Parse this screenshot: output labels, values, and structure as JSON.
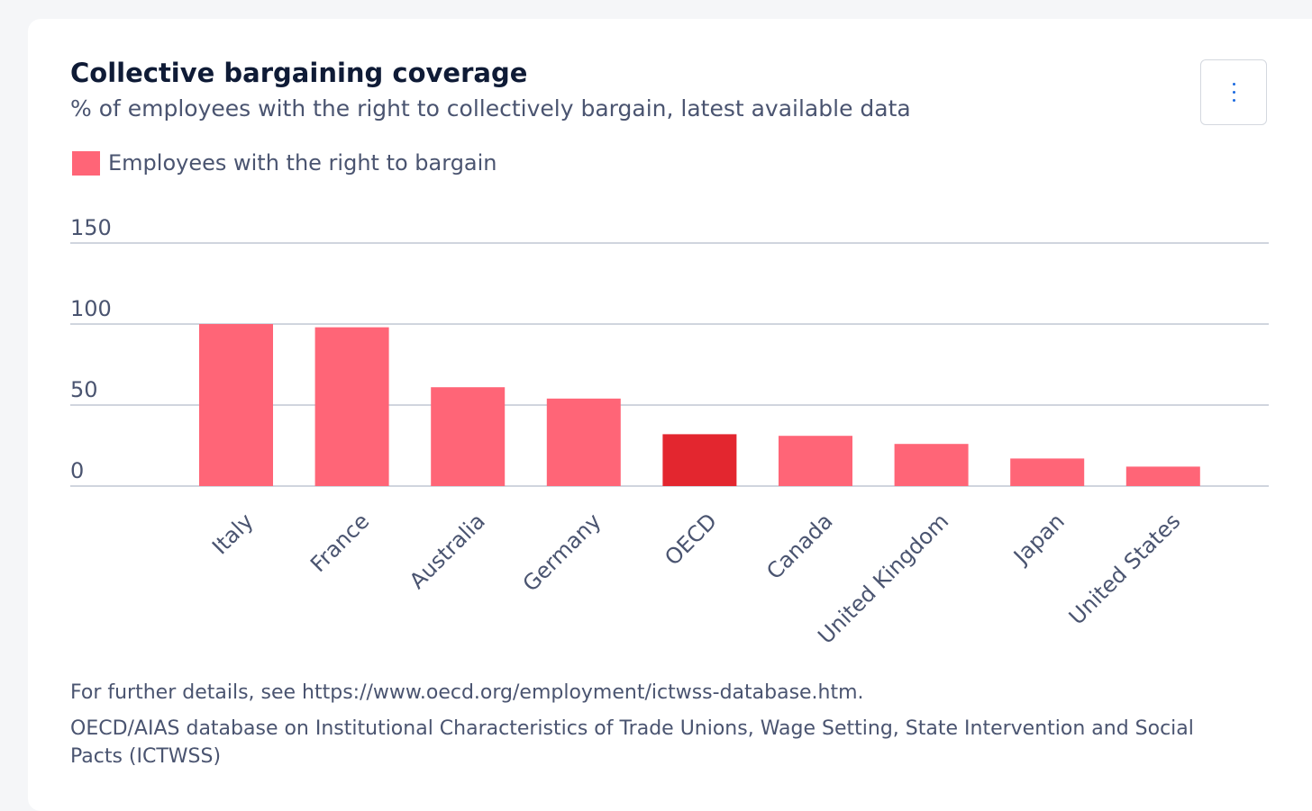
{
  "chart_data": {
    "type": "bar",
    "title": "Collective bargaining coverage",
    "subtitle": "% of employees with the right to collectively bargain, latest available data",
    "legend": [
      {
        "label": "Employees with the right to bargain",
        "color": "#ff6577"
      }
    ],
    "legend_position": "top-left",
    "categories": [
      "Italy",
      "France",
      "Australia",
      "Germany",
      "OECD",
      "Canada",
      "United Kingdom",
      "Japan",
      "United States"
    ],
    "series": [
      {
        "name": "Employees with the right to bargain",
        "values": [
          100,
          98,
          61,
          54,
          32,
          31,
          26,
          17,
          12
        ]
      }
    ],
    "highlight": {
      "category": "OECD",
      "color": "#e3262f"
    },
    "bar_color": "#ff6577",
    "xlabel": "",
    "ylabel": "",
    "ylim": [
      0,
      150
    ],
    "yticks": [
      0,
      50,
      100,
      150
    ],
    "grid": true
  },
  "footnotes": {
    "details": "For further details, see https://www.oecd.org/employment/ictwss-database.htm.",
    "source": "OECD/AIAS database on Institutional Characteristics of Trade Unions, Wage Setting, State Intervention and Social Pacts (ICTWSS)"
  },
  "menu": {
    "icon": "more-vertical-icon"
  }
}
